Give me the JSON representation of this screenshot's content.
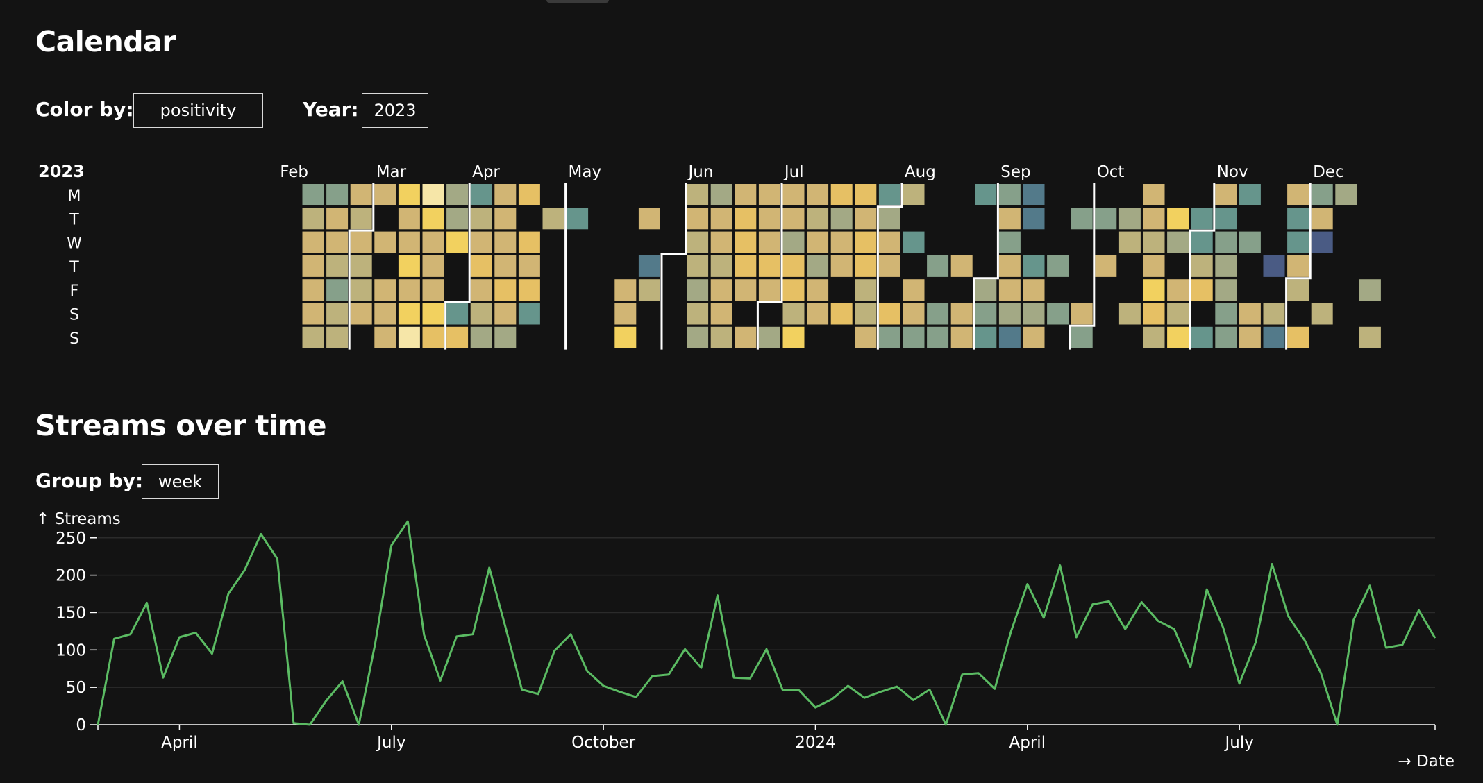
{
  "calendar": {
    "title": "Calendar",
    "color_by_label": "Color by:",
    "color_by_value": "positivity",
    "year_label": "Year:",
    "year_value": "2023",
    "year_heading": "2023",
    "day_labels": [
      "M",
      "T",
      "W",
      "T",
      "F",
      "S",
      "S"
    ],
    "month_labels": [
      "Feb",
      "Mar",
      "Apr",
      "May",
      "Jun",
      "Jul",
      "Aug",
      "Sep",
      "Oct",
      "Nov",
      "Dec"
    ],
    "palette": [
      "#4a5b84",
      "#537a8a",
      "#66958c",
      "#86a08a",
      "#a3a985",
      "#bdb27c",
      "#d1b574",
      "#e6c064",
      "#f2d15f",
      "#f6e6a8"
    ],
    "week_index_start": 7,
    "weeks": [
      [
        3,
        5,
        6,
        6,
        6,
        6,
        5
      ],
      [
        3,
        6,
        6,
        5,
        3,
        5,
        5
      ],
      [
        6,
        5,
        6,
        5,
        5,
        6,
        -1
      ],
      [
        6,
        -1,
        6,
        -1,
        6,
        6,
        6
      ],
      [
        8,
        6,
        6,
        8,
        6,
        8,
        9
      ],
      [
        9,
        8,
        6,
        6,
        6,
        8,
        7
      ],
      [
        4,
        4,
        8,
        -1,
        -1,
        2,
        7
      ],
      [
        2,
        5,
        6,
        7,
        6,
        5,
        4
      ],
      [
        6,
        6,
        6,
        6,
        7,
        6,
        4
      ],
      [
        7,
        -1,
        7,
        6,
        7,
        2,
        -1
      ],
      [
        -1,
        5,
        -1,
        -1,
        -1,
        -1,
        -1
      ],
      [
        -1,
        2,
        -1,
        -1,
        -1,
        -1,
        -1
      ],
      [
        -1,
        -1,
        -1,
        -1,
        -1,
        -1,
        -1
      ],
      [
        -1,
        -1,
        -1,
        -1,
        6,
        6,
        8
      ],
      [
        -1,
        6,
        -1,
        1,
        5,
        -1,
        -1
      ],
      [
        -1,
        -1,
        -1,
        -1,
        -1,
        -1,
        -1
      ],
      [
        5,
        6,
        5,
        5,
        4,
        5,
        4
      ],
      [
        4,
        6,
        6,
        5,
        6,
        6,
        5
      ],
      [
        6,
        7,
        7,
        7,
        6,
        -1,
        6
      ],
      [
        6,
        6,
        6,
        7,
        6,
        -1,
        4
      ],
      [
        6,
        6,
        4,
        7,
        7,
        5,
        8
      ],
      [
        6,
        5,
        6,
        4,
        6,
        6,
        -1
      ],
      [
        7,
        4,
        6,
        6,
        -1,
        7,
        -1
      ],
      [
        7,
        6,
        7,
        7,
        5,
        5,
        6
      ],
      [
        2,
        4,
        6,
        6,
        -1,
        7,
        3
      ],
      [
        5,
        -1,
        2,
        -1,
        6,
        6,
        3
      ],
      [
        -1,
        -1,
        -1,
        3,
        -1,
        3,
        3
      ],
      [
        -1,
        -1,
        -1,
        6,
        -1,
        6,
        6
      ],
      [
        2,
        -1,
        -1,
        -1,
        4,
        3,
        2
      ],
      [
        3,
        6,
        3,
        6,
        6,
        4,
        1
      ],
      [
        1,
        1,
        -1,
        2,
        6,
        4,
        6
      ],
      [
        -1,
        -1,
        -1,
        3,
        -1,
        3,
        -1
      ],
      [
        -1,
        3,
        -1,
        -1,
        -1,
        6,
        3
      ],
      [
        -1,
        3,
        -1,
        6,
        -1,
        -1,
        -1
      ],
      [
        -1,
        4,
        5,
        -1,
        -1,
        5,
        -1
      ],
      [
        6,
        6,
        5,
        6,
        8,
        7,
        5
      ],
      [
        -1,
        8,
        4,
        -1,
        6,
        5,
        8
      ],
      [
        -1,
        2,
        2,
        5,
        7,
        -1,
        2
      ],
      [
        6,
        2,
        3,
        4,
        4,
        3,
        3
      ],
      [
        2,
        -1,
        3,
        -1,
        -1,
        6,
        6
      ],
      [
        -1,
        -1,
        -1,
        0,
        -1,
        5,
        1
      ],
      [
        6,
        2,
        2,
        6,
        5,
        -1,
        7
      ],
      [
        3,
        6,
        0,
        -1,
        -1,
        5,
        -1
      ],
      [
        4,
        -1,
        -1,
        -1,
        -1,
        -1,
        -1
      ],
      [
        -1,
        -1,
        -1,
        -1,
        4,
        -1,
        5
      ]
    ]
  },
  "streams": {
    "title": "Streams over time",
    "group_by_label": "Group by:",
    "group_by_value": "week",
    "y_axis_label": "↑ Streams",
    "x_axis_label": "→ Date",
    "y_ticks": [
      0,
      50,
      100,
      150,
      200,
      250
    ],
    "y_domain": [
      0,
      260
    ],
    "x_ticks": [
      "April",
      "July",
      "October",
      "2024",
      "April",
      "July"
    ],
    "x_tick_weeks": [
      5,
      18,
      31,
      44,
      57,
      70
    ],
    "series_color": "#5bbb63"
  },
  "chart_data": {
    "type": "line",
    "title": "Streams over time",
    "xlabel": "→ Date",
    "ylabel": "↑ Streams",
    "ylim": [
      0,
      260
    ],
    "x_tick_labels": [
      "April",
      "July",
      "October",
      "2024",
      "April",
      "July"
    ],
    "values": [
      0,
      115,
      121,
      163,
      63,
      117,
      123,
      95,
      175,
      207,
      255,
      222,
      2,
      0,
      32,
      58,
      0,
      108,
      240,
      272,
      120,
      59,
      118,
      121,
      210,
      130,
      47,
      41,
      99,
      121,
      72,
      52,
      44,
      37,
      65,
      67,
      101,
      76,
      173,
      63,
      62,
      101,
      46,
      46,
      23,
      34,
      52,
      36,
      44,
      51,
      33,
      47,
      0,
      67,
      69,
      48,
      125,
      188,
      143,
      213,
      117,
      161,
      165,
      128,
      164,
      139,
      128,
      77,
      181,
      130,
      55,
      110,
      215,
      145,
      113,
      69,
      0,
      140,
      186,
      103,
      107,
      153,
      116
    ]
  }
}
